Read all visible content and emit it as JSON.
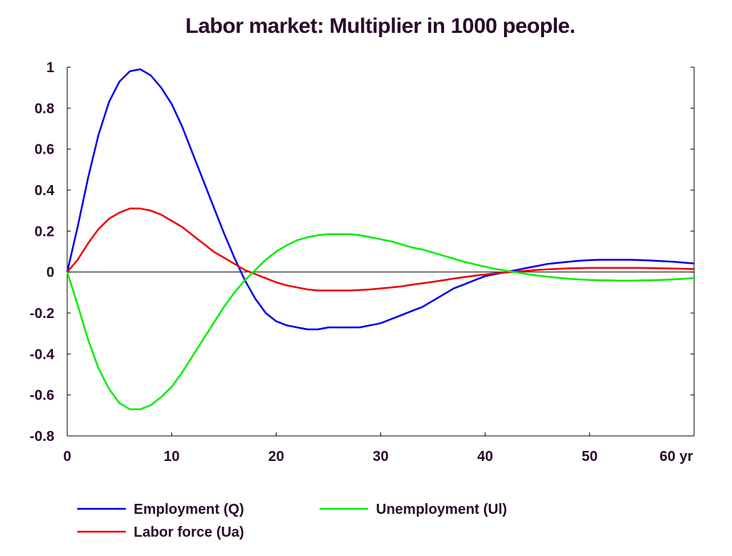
{
  "chart_data": {
    "type": "line",
    "title": "Labor market: Multiplier in 1000 people.",
    "xlabel": "",
    "ylabel": "",
    "x_unit": "yr",
    "xlim": [
      0,
      60
    ],
    "ylim": [
      -0.8,
      1
    ],
    "x_ticks": [
      "0",
      "10",
      "20",
      "30",
      "40",
      "50",
      "60 yr"
    ],
    "y_ticks": [
      "1",
      "0.8",
      "0.6",
      "0.4",
      "0.2",
      "0",
      "-0.2",
      "-0.4",
      "-0.6",
      "-0.8"
    ],
    "grid": false,
    "legend_position": "bottom",
    "series": [
      {
        "name": "Employment (Q)",
        "color": "#0000ee",
        "x": [
          0,
          1,
          2,
          3,
          4,
          5,
          6,
          7,
          8,
          9,
          10,
          11,
          12,
          13,
          14,
          15,
          16,
          17,
          18,
          19,
          20,
          21,
          22,
          23,
          24,
          25,
          26,
          27,
          28,
          29,
          30,
          31,
          32,
          33,
          34,
          35,
          36,
          37,
          38,
          39,
          40,
          41,
          42,
          43,
          44,
          45,
          46,
          47,
          48,
          49,
          50,
          51,
          52,
          53,
          54,
          55,
          56,
          57,
          58,
          59,
          60
        ],
        "values": [
          0,
          0.22,
          0.46,
          0.67,
          0.83,
          0.93,
          0.98,
          0.99,
          0.96,
          0.9,
          0.82,
          0.71,
          0.58,
          0.45,
          0.32,
          0.19,
          0.07,
          -0.04,
          -0.13,
          -0.2,
          -0.24,
          -0.26,
          -0.27,
          -0.28,
          -0.28,
          -0.27,
          -0.27,
          -0.27,
          -0.27,
          -0.26,
          -0.25,
          -0.23,
          -0.21,
          -0.19,
          -0.17,
          -0.14,
          -0.11,
          -0.08,
          -0.06,
          -0.04,
          -0.02,
          -0.01,
          0.0,
          0.01,
          0.02,
          0.03,
          0.04,
          0.045,
          0.05,
          0.055,
          0.058,
          0.06,
          0.06,
          0.06,
          0.06,
          0.058,
          0.056,
          0.053,
          0.05,
          0.046,
          0.042
        ]
      },
      {
        "name": "Labor force (Ua)",
        "color": "#ee0000",
        "x": [
          0,
          1,
          2,
          3,
          4,
          5,
          6,
          7,
          8,
          9,
          10,
          11,
          12,
          13,
          14,
          15,
          16,
          17,
          18,
          19,
          20,
          21,
          22,
          23,
          24,
          25,
          26,
          27,
          28,
          29,
          30,
          31,
          32,
          33,
          34,
          35,
          36,
          37,
          38,
          39,
          40,
          41,
          42,
          43,
          44,
          45,
          46,
          47,
          48,
          49,
          50,
          51,
          52,
          53,
          54,
          55,
          56,
          57,
          58,
          59,
          60
        ],
        "values": [
          0,
          0.06,
          0.14,
          0.21,
          0.26,
          0.29,
          0.31,
          0.31,
          0.3,
          0.28,
          0.25,
          0.22,
          0.18,
          0.14,
          0.1,
          0.07,
          0.04,
          0.01,
          -0.01,
          -0.03,
          -0.05,
          -0.065,
          -0.075,
          -0.085,
          -0.09,
          -0.09,
          -0.09,
          -0.09,
          -0.088,
          -0.085,
          -0.08,
          -0.075,
          -0.07,
          -0.062,
          -0.055,
          -0.048,
          -0.04,
          -0.032,
          -0.025,
          -0.018,
          -0.012,
          -0.006,
          -0.002,
          0.002,
          0.006,
          0.01,
          0.013,
          0.016,
          0.018,
          0.019,
          0.02,
          0.02,
          0.02,
          0.02,
          0.02,
          0.02,
          0.019,
          0.018,
          0.017,
          0.016,
          0.015
        ]
      },
      {
        "name": "Unemployment (Ul)",
        "color": "#00ee00",
        "x": [
          0,
          1,
          2,
          3,
          4,
          5,
          6,
          7,
          8,
          9,
          10,
          11,
          12,
          13,
          14,
          15,
          16,
          17,
          18,
          19,
          20,
          21,
          22,
          23,
          24,
          25,
          26,
          27,
          28,
          29,
          30,
          31,
          32,
          33,
          34,
          35,
          36,
          37,
          38,
          39,
          40,
          41,
          42,
          43,
          44,
          45,
          46,
          47,
          48,
          49,
          50,
          51,
          52,
          53,
          54,
          55,
          56,
          57,
          58,
          59,
          60
        ],
        "values": [
          0,
          -0.16,
          -0.33,
          -0.47,
          -0.57,
          -0.64,
          -0.67,
          -0.67,
          -0.65,
          -0.61,
          -0.56,
          -0.49,
          -0.41,
          -0.33,
          -0.25,
          -0.17,
          -0.1,
          -0.04,
          0.01,
          0.06,
          0.1,
          0.13,
          0.155,
          0.17,
          0.18,
          0.185,
          0.185,
          0.185,
          0.18,
          0.17,
          0.16,
          0.15,
          0.135,
          0.12,
          0.11,
          0.095,
          0.08,
          0.065,
          0.05,
          0.038,
          0.026,
          0.015,
          0.006,
          -0.002,
          -0.01,
          -0.017,
          -0.023,
          -0.028,
          -0.033,
          -0.036,
          -0.039,
          -0.04,
          -0.041,
          -0.042,
          -0.042,
          -0.041,
          -0.04,
          -0.038,
          -0.036,
          -0.033,
          -0.03
        ]
      }
    ]
  }
}
